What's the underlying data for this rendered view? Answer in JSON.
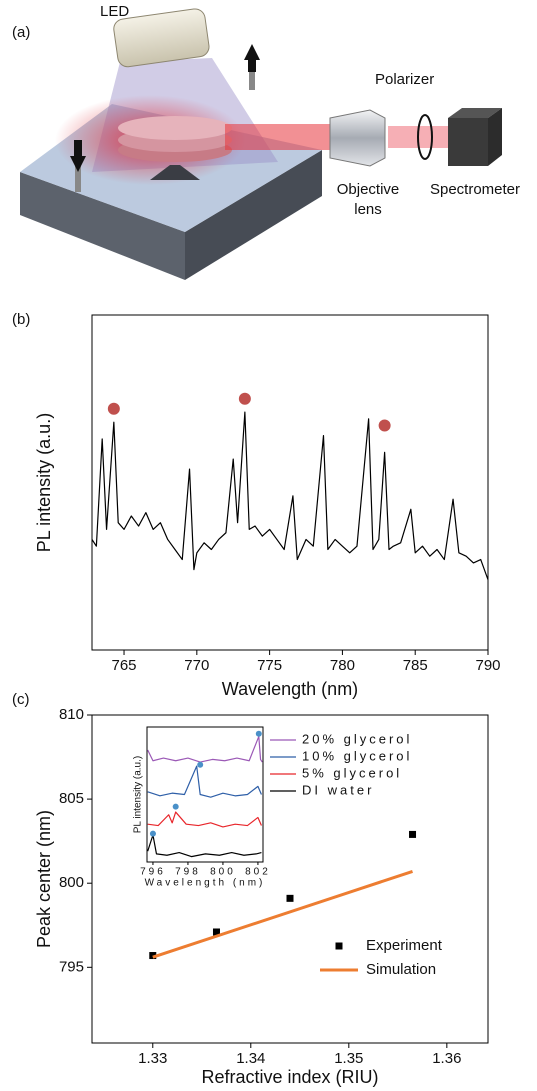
{
  "panel_labels": [
    "(a)",
    "(b)",
    "(c)"
  ],
  "diagram": {
    "led": "LED",
    "polarizer": "Polarizer",
    "objective_lens": [
      "Objective",
      "lens"
    ],
    "spectrometer": "Spectrometer"
  },
  "chart_data": [
    {
      "type": "line",
      "x_label": "Wavelength (nm)",
      "y_label": "PL intensity (a.u.)",
      "xlim": [
        762.8,
        790
      ],
      "ylim": [
        0,
        100
      ],
      "xticks": [
        765,
        770,
        775,
        780,
        785,
        790
      ],
      "x": [
        762.8,
        763.1,
        763.5,
        763.8,
        764.3,
        764.6,
        765,
        765.5,
        766,
        766.5,
        767,
        767.5,
        768,
        768.5,
        769,
        769.5,
        769.8,
        770,
        770.5,
        771,
        771.5,
        772,
        772.5,
        772.8,
        773.3,
        773.6,
        774,
        774.5,
        775,
        775.5,
        776,
        776.6,
        776.9,
        777.5,
        778,
        778.7,
        779,
        779.5,
        780,
        780.5,
        781,
        781.8,
        782.1,
        782.5,
        782.9,
        783.2,
        783.5,
        784,
        784.7,
        785,
        785.5,
        786,
        786.5,
        787,
        787.6,
        788,
        788.5,
        789,
        789.5,
        790
      ],
      "series": [
        {
          "color": "#000000",
          "values": [
            33,
            31,
            63,
            36,
            68,
            38,
            36,
            40,
            37,
            41,
            36,
            38,
            33,
            30,
            27,
            54,
            24,
            29,
            32,
            30,
            33,
            35,
            57,
            38,
            71,
            36,
            37,
            34,
            36,
            33,
            30,
            46,
            27,
            33,
            31,
            64,
            30,
            33,
            31,
            29,
            31,
            69,
            30,
            33,
            59,
            30,
            31,
            32,
            42,
            29,
            31,
            28,
            30,
            27,
            45,
            29,
            28,
            26,
            27,
            21
          ]
        }
      ],
      "markers": {
        "color": "#c0504d",
        "x": [
          764.3,
          773.3,
          782.9
        ],
        "values": [
          72,
          75,
          67
        ]
      }
    },
    {
      "type": "scatter",
      "x_label": "Refractive index (RIU)",
      "y_label": "Peak center (nm)",
      "xlim": [
        1.3238,
        1.3642
      ],
      "ylim": [
        790.5,
        810
      ],
      "xticks": [
        1.33,
        1.34,
        1.35,
        1.36
      ],
      "yticks": [
        795,
        800,
        805,
        810
      ],
      "legend": "lower right",
      "series": [
        {
          "name": "Experiment",
          "type": "scatter",
          "color": "#000000",
          "x": [
            1.33,
            1.3365,
            1.344,
            1.3565
          ],
          "values": [
            795.7,
            797.1,
            799.1,
            802.9
          ]
        },
        {
          "name": "Simulation",
          "type": "line",
          "color": "#ed7d31",
          "x": [
            1.33,
            1.3565
          ],
          "values": [
            795.6,
            800.7
          ]
        }
      ]
    },
    {
      "type": "line",
      "x_label": "Wavelength (nm)",
      "y_label": "PL intensity (a.u.)",
      "xlim": [
        795.66,
        802.29
      ],
      "ylim": [
        0,
        100
      ],
      "xticks": [
        796,
        798,
        800,
        802
      ],
      "legend": "right",
      "series": [
        {
          "name": "20% glycerol",
          "color": "#9b59b6",
          "x": [
            795.7,
            796.0,
            796.6,
            797.3,
            798.0,
            798.7,
            799.4,
            800.1,
            800.8,
            801.5,
            802.05,
            802.15,
            802.25
          ],
          "values": [
            83,
            75,
            77,
            75,
            77,
            74,
            76,
            75,
            77,
            75,
            93,
            76,
            74
          ]
        },
        {
          "name": "10% glycerol",
          "color": "#2e5fa8",
          "x": [
            795.7,
            796.4,
            797.1,
            797.8,
            798.5,
            798.7,
            799.3,
            800,
            800.7,
            801.4,
            802.0,
            802.2
          ],
          "values": [
            52,
            49,
            51,
            50,
            71,
            50,
            48,
            51,
            49,
            50,
            56,
            50
          ]
        },
        {
          "name": "5% glycerol",
          "color": "#e8262b",
          "x": [
            795.7,
            796.3,
            796.9,
            797.1,
            797.3,
            797.9,
            798.6,
            799.3,
            800,
            800.7,
            801.4,
            802.0,
            802.2
          ],
          "values": [
            28,
            27,
            35,
            29,
            37,
            28,
            27,
            29,
            26,
            28,
            27,
            33,
            27
          ]
        },
        {
          "name": "DI water",
          "color": "#000000",
          "x": [
            795.7,
            796.0,
            796.2,
            796.8,
            797.5,
            798.2,
            799,
            799.8,
            800.5,
            801.2,
            801.9,
            802.2
          ],
          "values": [
            8,
            20,
            6,
            5,
            7,
            4,
            6,
            5,
            7,
            5,
            6,
            7
          ]
        }
      ],
      "markers": {
        "color": "#4a90c8",
        "x": [
          796.0,
          797.3,
          798.7,
          802.05
        ],
        "values": [
          21,
          41,
          72,
          95
        ]
      }
    }
  ]
}
